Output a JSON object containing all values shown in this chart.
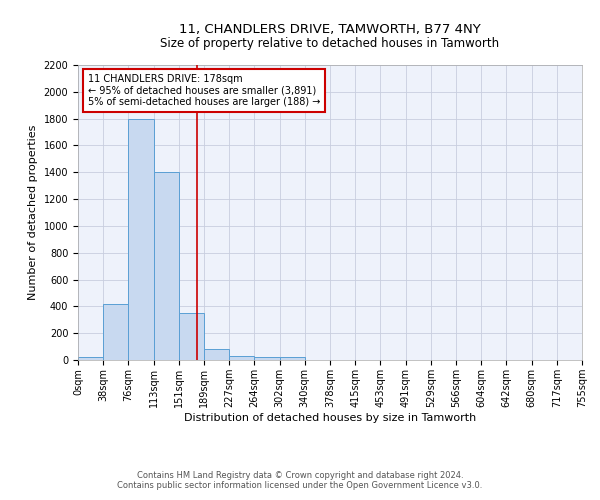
{
  "title": "11, CHANDLERS DRIVE, TAMWORTH, B77 4NY",
  "subtitle": "Size of property relative to detached houses in Tamworth",
  "xlabel": "Distribution of detached houses by size in Tamworth",
  "ylabel": "Number of detached properties",
  "bin_labels": [
    "0sqm",
    "38sqm",
    "76sqm",
    "113sqm",
    "151sqm",
    "189sqm",
    "227sqm",
    "264sqm",
    "302sqm",
    "340sqm",
    "378sqm",
    "415sqm",
    "453sqm",
    "491sqm",
    "529sqm",
    "566sqm",
    "604sqm",
    "642sqm",
    "680sqm",
    "717sqm",
    "755sqm"
  ],
  "bar_values": [
    20,
    420,
    1800,
    1400,
    350,
    80,
    30,
    20,
    20,
    0,
    0,
    0,
    0,
    0,
    0,
    0,
    0,
    0,
    0,
    0
  ],
  "bar_color": "#c8d9f0",
  "bar_edge_color": "#5a9fd4",
  "vline_color": "#cc0000",
  "annotation_text": "11 CHANDLERS DRIVE: 178sqm\n← 95% of detached houses are smaller (3,891)\n5% of semi-detached houses are larger (188) →",
  "annotation_box_color": "#cc0000",
  "ylim": [
    0,
    2200
  ],
  "yticks": [
    0,
    200,
    400,
    600,
    800,
    1000,
    1200,
    1400,
    1600,
    1800,
    2000,
    2200
  ],
  "background_color": "#eef2fb",
  "grid_color": "#c8cedf",
  "footer": "Contains HM Land Registry data © Crown copyright and database right 2024.\nContains public sector information licensed under the Open Government Licence v3.0.",
  "title_fontsize": 9.5,
  "subtitle_fontsize": 8.5,
  "ylabel_fontsize": 8,
  "xlabel_fontsize": 8,
  "tick_fontsize": 7,
  "annot_fontsize": 7,
  "footer_fontsize": 6
}
